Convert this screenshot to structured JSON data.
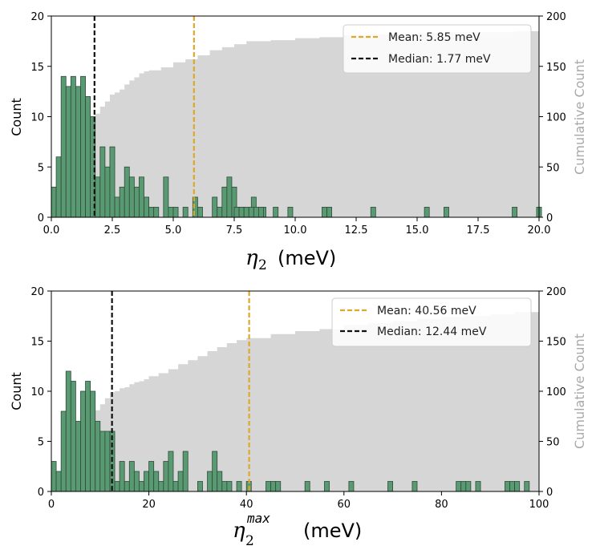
{
  "chart_data": [
    {
      "type": "histogram",
      "xlabel": "(meV)",
      "xlabel_symbol": "η",
      "xlabel_subscript": "2",
      "xlabel_superscript": "",
      "ylabel": "Count",
      "ylabel_right": "Cumulative Count",
      "xlim": [
        0,
        20
      ],
      "ylim": [
        0,
        20
      ],
      "ylim_right": [
        0,
        200
      ],
      "x_ticks": [
        "0.0",
        "2.5",
        "5.0",
        "7.5",
        "10.0",
        "12.5",
        "15.0",
        "17.5",
        "20.0"
      ],
      "x_tick_values": [
        0,
        2.5,
        5,
        7.5,
        10,
        12.5,
        15,
        17.5,
        20
      ],
      "y_ticks": [
        "0",
        "5",
        "10",
        "15",
        "20"
      ],
      "y_tick_values": [
        0,
        5,
        10,
        15,
        20
      ],
      "y2_ticks": [
        "0",
        "50",
        "100",
        "150",
        "200"
      ],
      "y2_tick_values": [
        0,
        50,
        100,
        150,
        200
      ],
      "bin_width": 0.2,
      "counts": [
        3,
        6,
        14,
        13,
        14,
        13,
        14,
        12,
        10,
        4,
        7,
        5,
        7,
        2,
        3,
        5,
        4,
        3,
        4,
        2,
        1,
        1,
        0,
        4,
        1,
        1,
        0,
        1,
        0,
        2,
        1,
        0,
        0,
        2,
        1,
        3,
        4,
        3,
        1,
        1,
        0,
        2,
        0,
        1,
        0,
        0,
        0,
        0,
        0,
        0,
        0,
        0,
        0,
        0,
        0,
        0,
        0,
        0,
        0,
        0,
        0,
        0,
        0,
        0,
        0,
        0,
        0,
        0,
        0,
        0,
        0,
        0,
        0,
        0,
        0,
        0,
        0,
        0,
        0,
        0,
        0,
        0,
        0,
        0,
        0,
        0,
        0,
        0,
        0,
        0,
        0,
        0,
        0,
        0,
        0,
        0,
        0,
        0,
        0,
        0
      ],
      "counts_tail": [
        [
          7.5,
          1
        ],
        [
          7.7,
          1
        ],
        [
          7.9,
          1
        ],
        [
          8.1,
          1
        ],
        [
          8.3,
          1
        ],
        [
          8.5,
          1
        ],
        [
          9.1,
          1
        ],
        [
          9.7,
          1
        ],
        [
          11.1,
          1
        ],
        [
          11.3,
          1
        ],
        [
          13.1,
          1
        ],
        [
          15.3,
          1
        ],
        [
          16.1,
          1
        ],
        [
          18.9,
          1
        ],
        [
          19.9,
          1
        ]
      ],
      "cumulative": {
        "x": [
          0,
          0.2,
          0.4,
          0.6,
          0.8,
          1.0,
          1.2,
          1.4,
          1.6,
          1.8,
          2.0,
          2.2,
          2.4,
          2.6,
          2.8,
          3.0,
          3.2,
          3.4,
          3.6,
          3.8,
          4.0,
          4.5,
          5.0,
          5.5,
          6.0,
          6.5,
          7.0,
          7.5,
          8.0,
          9.0,
          10.0,
          11.0,
          12.0,
          13.0,
          14.0,
          15.0,
          16.0,
          17.0,
          18.0,
          19.0,
          20.0
        ],
        "y": [
          3,
          9,
          23,
          36,
          50,
          63,
          77,
          89,
          99,
          103,
          110,
          115,
          122,
          124,
          127,
          132,
          136,
          139,
          143,
          145,
          146,
          149,
          154,
          157,
          161,
          166,
          169,
          172,
          175,
          176,
          178,
          179,
          181,
          182,
          182,
          183,
          184,
          184,
          184,
          185,
          186
        ]
      },
      "series": [
        {
          "name": "Mean: 5.85 meV",
          "value": 5.85,
          "color": "#dcaa28"
        },
        {
          "name": "Median: 1.77 meV",
          "value": 1.77,
          "color": "#111111"
        }
      ],
      "bar_color": "#5a9a72",
      "cumulative_color": "#d6d6d6"
    },
    {
      "type": "histogram",
      "xlabel": "(meV)",
      "xlabel_symbol": "η",
      "xlabel_subscript": "2",
      "xlabel_superscript": "max",
      "ylabel": "Count",
      "ylabel_right": "Cumulative Count",
      "xlim": [
        0,
        100
      ],
      "ylim": [
        0,
        20
      ],
      "ylim_right": [
        0,
        200
      ],
      "x_ticks": [
        "0",
        "20",
        "40",
        "60",
        "80",
        "100"
      ],
      "x_tick_values": [
        0,
        20,
        40,
        60,
        80,
        100
      ],
      "y_ticks": [
        "0",
        "5",
        "10",
        "15",
        "20"
      ],
      "y_tick_values": [
        0,
        5,
        10,
        15,
        20
      ],
      "y2_ticks": [
        "0",
        "50",
        "100",
        "150",
        "200"
      ],
      "y2_tick_values": [
        0,
        50,
        100,
        150,
        200
      ],
      "bin_width": 1,
      "counts": [
        3,
        2,
        8,
        12,
        11,
        7,
        10,
        11,
        10,
        7,
        6,
        6,
        6,
        1,
        3,
        1,
        3,
        2,
        1,
        2,
        3,
        2,
        1,
        3,
        4,
        1,
        2,
        4,
        0,
        0,
        1,
        0,
        2,
        4,
        2,
        1,
        1,
        0,
        0,
        0,
        0,
        0,
        0,
        0,
        0,
        0,
        0,
        0,
        0,
        0,
        0,
        0,
        0,
        0,
        0,
        0,
        0,
        0,
        0,
        0,
        0,
        0,
        0,
        0,
        0,
        0,
        0,
        0,
        0,
        0,
        0,
        0,
        0,
        0,
        0,
        0,
        0,
        0,
        0,
        0,
        0,
        0,
        0,
        0,
        0,
        0,
        0,
        0,
        0,
        0,
        0,
        0,
        0,
        0,
        0,
        0,
        0,
        0,
        0,
        0
      ],
      "counts_tail": [
        [
          38,
          1
        ],
        [
          40,
          1
        ],
        [
          44,
          1
        ],
        [
          45,
          1
        ],
        [
          46,
          1
        ],
        [
          52,
          1
        ],
        [
          56,
          1
        ],
        [
          61,
          1
        ],
        [
          69,
          1
        ],
        [
          74,
          1
        ],
        [
          83,
          1
        ],
        [
          84,
          1
        ],
        [
          85,
          1
        ],
        [
          87,
          1
        ],
        [
          93,
          1
        ],
        [
          94,
          1
        ],
        [
          95,
          1
        ],
        [
          97,
          1
        ]
      ],
      "cumulative": {
        "x": [
          0,
          1,
          2,
          3,
          4,
          5,
          6,
          7,
          8,
          9,
          10,
          11,
          12,
          13,
          14,
          15,
          16,
          17,
          18,
          19,
          20,
          22,
          24,
          26,
          28,
          30,
          32,
          34,
          36,
          38,
          40,
          45,
          50,
          55,
          60,
          65,
          70,
          75,
          80,
          85,
          90,
          95,
          100
        ],
        "y": [
          3,
          5,
          13,
          25,
          36,
          43,
          53,
          64,
          74,
          81,
          87,
          93,
          99,
          100,
          103,
          104,
          107,
          109,
          110,
          112,
          115,
          118,
          122,
          127,
          131,
          135,
          140,
          144,
          148,
          151,
          153,
          157,
          160,
          162,
          166,
          168,
          170,
          172,
          174,
          175,
          177,
          179,
          180
        ]
      },
      "series": [
        {
          "name": "Mean: 40.56 meV",
          "value": 40.56,
          "color": "#dcaa28"
        },
        {
          "name": "Median: 12.44 meV",
          "value": 12.44,
          "color": "#111111"
        }
      ],
      "bar_color": "#5a9a72",
      "cumulative_color": "#d6d6d6"
    }
  ]
}
